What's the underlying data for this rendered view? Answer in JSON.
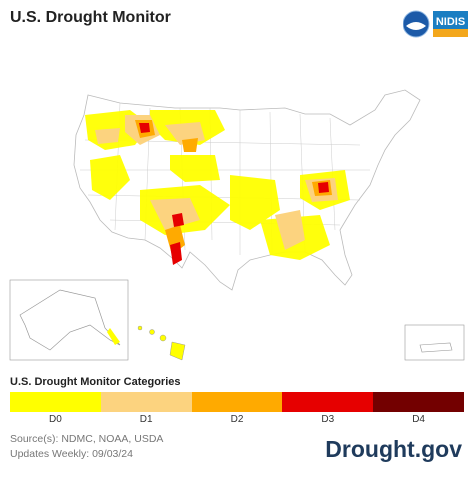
{
  "header": {
    "title": "U.S. Drought Monitor"
  },
  "logos": {
    "noaa": "NOAA",
    "nidis": "NIDIS"
  },
  "legend": {
    "title": "U.S. Drought Monitor Categories",
    "categories": [
      {
        "label": "D0",
        "color": "#ffff00"
      },
      {
        "label": "D1",
        "color": "#fcd37f"
      },
      {
        "label": "D2",
        "color": "#ffaa00"
      },
      {
        "label": "D3",
        "color": "#e60000"
      },
      {
        "label": "D4",
        "color": "#730000"
      }
    ]
  },
  "footer": {
    "sources": "Source(s): NDMC, NOAA, USDA",
    "updates": "Updates Weekly: 09/03/24",
    "brand": "Drought.gov"
  },
  "map": {
    "states_outline_color": "#bbbbbb",
    "land_color": "#ffffff"
  }
}
